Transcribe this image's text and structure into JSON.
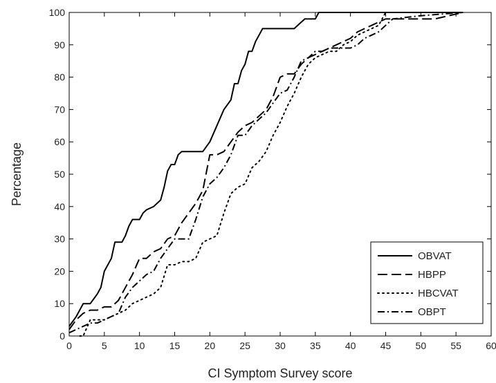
{
  "chart_data": {
    "type": "line",
    "xlabel": "CI Symptom Survey score",
    "ylabel": "Percentage",
    "xlim": [
      0,
      60
    ],
    "ylim": [
      0,
      100
    ],
    "xticks": [
      0,
      5,
      10,
      15,
      20,
      25,
      30,
      35,
      40,
      45,
      50,
      55,
      60
    ],
    "yticks": [
      0,
      10,
      20,
      30,
      40,
      50,
      60,
      70,
      80,
      90,
      100
    ],
    "grid": false,
    "legend_position": "bottom-right",
    "series": [
      {
        "name": "OBVAT",
        "style": "solid",
        "points": [
          [
            0,
            3
          ],
          [
            1,
            6
          ],
          [
            2,
            10
          ],
          [
            3,
            10
          ],
          [
            4,
            13
          ],
          [
            4.5,
            15
          ],
          [
            5,
            20
          ],
          [
            6,
            24
          ],
          [
            6.5,
            29
          ],
          [
            7.5,
            29
          ],
          [
            8,
            31
          ],
          [
            8.5,
            34
          ],
          [
            9,
            36
          ],
          [
            10,
            36
          ],
          [
            10.5,
            38
          ],
          [
            11,
            39
          ],
          [
            12,
            40
          ],
          [
            13,
            42
          ],
          [
            13.5,
            46
          ],
          [
            14,
            51
          ],
          [
            14.5,
            53
          ],
          [
            15,
            53
          ],
          [
            15.5,
            56
          ],
          [
            16,
            57
          ],
          [
            19,
            57
          ],
          [
            20,
            60
          ],
          [
            21,
            65
          ],
          [
            22,
            70
          ],
          [
            23,
            73
          ],
          [
            23.5,
            78
          ],
          [
            24,
            78
          ],
          [
            24.5,
            82
          ],
          [
            25,
            84
          ],
          [
            25.5,
            88
          ],
          [
            26,
            88
          ],
          [
            26.5,
            91
          ],
          [
            27,
            93
          ],
          [
            27.5,
            95
          ],
          [
            32,
            95
          ],
          [
            33,
            97
          ],
          [
            33.5,
            98
          ],
          [
            35,
            98
          ],
          [
            35.5,
            100
          ],
          [
            56,
            100
          ]
        ]
      },
      {
        "name": "HBPP",
        "style": "dashed",
        "points": [
          [
            0,
            2
          ],
          [
            1,
            5
          ],
          [
            2,
            7
          ],
          [
            3,
            8
          ],
          [
            4,
            8
          ],
          [
            5,
            9
          ],
          [
            6,
            9
          ],
          [
            7,
            11
          ],
          [
            8,
            15
          ],
          [
            9,
            19
          ],
          [
            10,
            24
          ],
          [
            11,
            24
          ],
          [
            12,
            26
          ],
          [
            13,
            27
          ],
          [
            14,
            30
          ],
          [
            15,
            31
          ],
          [
            16,
            35
          ],
          [
            17,
            38
          ],
          [
            18,
            41
          ],
          [
            19,
            45
          ],
          [
            20,
            56
          ],
          [
            21,
            56
          ],
          [
            22,
            57
          ],
          [
            23,
            60
          ],
          [
            24,
            63
          ],
          [
            25,
            65
          ],
          [
            26,
            66
          ],
          [
            27,
            68
          ],
          [
            28,
            70
          ],
          [
            29,
            74
          ],
          [
            30,
            80
          ],
          [
            31,
            81
          ],
          [
            32,
            81
          ],
          [
            33,
            84
          ],
          [
            34,
            86
          ],
          [
            35,
            87
          ],
          [
            36,
            88
          ],
          [
            37,
            89
          ],
          [
            38,
            90
          ],
          [
            39,
            91
          ],
          [
            40,
            92
          ],
          [
            41,
            94
          ],
          [
            42,
            95
          ],
          [
            43,
            96
          ],
          [
            44,
            97
          ],
          [
            45,
            98
          ],
          [
            52,
            98
          ],
          [
            56,
            100
          ]
        ]
      },
      {
        "name": "HBCVAT",
        "style": "dotted",
        "points": [
          [
            1.5,
            0
          ],
          [
            2,
            0
          ],
          [
            3,
            5
          ],
          [
            4,
            5
          ],
          [
            5,
            5
          ],
          [
            6,
            6
          ],
          [
            7,
            7
          ],
          [
            8,
            8
          ],
          [
            9,
            10
          ],
          [
            10,
            11
          ],
          [
            11,
            12
          ],
          [
            12,
            13
          ],
          [
            13,
            15
          ],
          [
            14,
            22
          ],
          [
            15,
            22
          ],
          [
            16,
            23
          ],
          [
            17,
            23
          ],
          [
            18,
            24
          ],
          [
            19,
            29
          ],
          [
            20,
            30
          ],
          [
            21,
            31
          ],
          [
            22,
            38
          ],
          [
            23,
            44
          ],
          [
            24,
            46
          ],
          [
            25,
            47
          ],
          [
            26,
            52
          ],
          [
            27,
            54
          ],
          [
            28,
            57
          ],
          [
            29,
            62
          ],
          [
            30,
            66
          ],
          [
            31,
            71
          ],
          [
            32,
            75
          ],
          [
            33,
            80
          ],
          [
            34,
            84
          ],
          [
            35,
            86
          ],
          [
            36,
            87
          ],
          [
            37,
            88
          ],
          [
            38,
            88
          ],
          [
            39,
            90
          ],
          [
            40,
            91
          ],
          [
            41,
            93
          ],
          [
            42,
            94
          ],
          [
            43,
            95
          ],
          [
            44,
            96
          ],
          [
            45,
            100
          ],
          [
            56,
            100
          ]
        ]
      },
      {
        "name": "OBPT",
        "style": "dashdot",
        "points": [
          [
            0,
            1
          ],
          [
            1,
            2
          ],
          [
            2,
            3
          ],
          [
            3,
            4
          ],
          [
            4,
            4
          ],
          [
            5,
            5
          ],
          [
            6,
            6
          ],
          [
            7,
            7
          ],
          [
            8,
            12
          ],
          [
            9,
            15
          ],
          [
            10,
            17
          ],
          [
            11,
            19
          ],
          [
            12,
            20
          ],
          [
            13,
            24
          ],
          [
            14,
            27
          ],
          [
            15,
            30
          ],
          [
            16,
            30
          ],
          [
            17,
            30
          ],
          [
            18,
            36
          ],
          [
            19,
            43
          ],
          [
            20,
            47
          ],
          [
            21,
            49
          ],
          [
            22,
            52
          ],
          [
            23,
            56
          ],
          [
            24,
            62
          ],
          [
            25,
            62
          ],
          [
            26,
            65
          ],
          [
            27,
            67
          ],
          [
            28,
            69
          ],
          [
            29,
            72
          ],
          [
            30,
            75
          ],
          [
            31,
            76
          ],
          [
            32,
            80
          ],
          [
            33,
            85
          ],
          [
            34,
            86
          ],
          [
            35,
            88
          ],
          [
            36,
            88
          ],
          [
            37,
            89
          ],
          [
            38,
            89
          ],
          [
            39,
            89
          ],
          [
            40,
            89
          ],
          [
            41,
            90
          ],
          [
            42,
            92
          ],
          [
            43,
            93
          ],
          [
            44,
            94
          ],
          [
            45,
            96
          ],
          [
            46,
            98
          ],
          [
            50,
            99
          ],
          [
            56,
            100
          ]
        ]
      }
    ]
  }
}
